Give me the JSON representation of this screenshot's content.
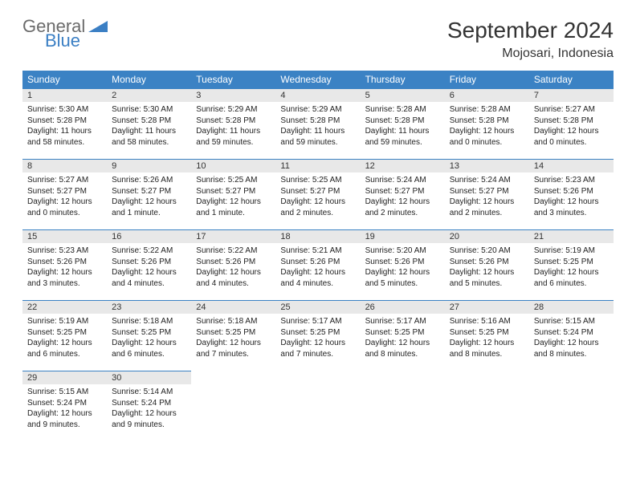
{
  "logo": {
    "line1": "General",
    "line2": "Blue"
  },
  "title": "September 2024",
  "location": "Mojosari, Indonesia",
  "day_headers": [
    "Sunday",
    "Monday",
    "Tuesday",
    "Wednesday",
    "Thursday",
    "Friday",
    "Saturday"
  ],
  "header_bg": "#3b82c4",
  "header_fg": "#ffffff",
  "daynum_bg": "#e8e8e8",
  "border_color": "#3b82c4",
  "weeks": [
    [
      {
        "n": "1",
        "sr": "Sunrise: 5:30 AM",
        "ss": "Sunset: 5:28 PM",
        "dl1": "Daylight: 11 hours",
        "dl2": "and 58 minutes."
      },
      {
        "n": "2",
        "sr": "Sunrise: 5:30 AM",
        "ss": "Sunset: 5:28 PM",
        "dl1": "Daylight: 11 hours",
        "dl2": "and 58 minutes."
      },
      {
        "n": "3",
        "sr": "Sunrise: 5:29 AM",
        "ss": "Sunset: 5:28 PM",
        "dl1": "Daylight: 11 hours",
        "dl2": "and 59 minutes."
      },
      {
        "n": "4",
        "sr": "Sunrise: 5:29 AM",
        "ss": "Sunset: 5:28 PM",
        "dl1": "Daylight: 11 hours",
        "dl2": "and 59 minutes."
      },
      {
        "n": "5",
        "sr": "Sunrise: 5:28 AM",
        "ss": "Sunset: 5:28 PM",
        "dl1": "Daylight: 11 hours",
        "dl2": "and 59 minutes."
      },
      {
        "n": "6",
        "sr": "Sunrise: 5:28 AM",
        "ss": "Sunset: 5:28 PM",
        "dl1": "Daylight: 12 hours",
        "dl2": "and 0 minutes."
      },
      {
        "n": "7",
        "sr": "Sunrise: 5:27 AM",
        "ss": "Sunset: 5:28 PM",
        "dl1": "Daylight: 12 hours",
        "dl2": "and 0 minutes."
      }
    ],
    [
      {
        "n": "8",
        "sr": "Sunrise: 5:27 AM",
        "ss": "Sunset: 5:27 PM",
        "dl1": "Daylight: 12 hours",
        "dl2": "and 0 minutes."
      },
      {
        "n": "9",
        "sr": "Sunrise: 5:26 AM",
        "ss": "Sunset: 5:27 PM",
        "dl1": "Daylight: 12 hours",
        "dl2": "and 1 minute."
      },
      {
        "n": "10",
        "sr": "Sunrise: 5:25 AM",
        "ss": "Sunset: 5:27 PM",
        "dl1": "Daylight: 12 hours",
        "dl2": "and 1 minute."
      },
      {
        "n": "11",
        "sr": "Sunrise: 5:25 AM",
        "ss": "Sunset: 5:27 PM",
        "dl1": "Daylight: 12 hours",
        "dl2": "and 2 minutes."
      },
      {
        "n": "12",
        "sr": "Sunrise: 5:24 AM",
        "ss": "Sunset: 5:27 PM",
        "dl1": "Daylight: 12 hours",
        "dl2": "and 2 minutes."
      },
      {
        "n": "13",
        "sr": "Sunrise: 5:24 AM",
        "ss": "Sunset: 5:27 PM",
        "dl1": "Daylight: 12 hours",
        "dl2": "and 2 minutes."
      },
      {
        "n": "14",
        "sr": "Sunrise: 5:23 AM",
        "ss": "Sunset: 5:26 PM",
        "dl1": "Daylight: 12 hours",
        "dl2": "and 3 minutes."
      }
    ],
    [
      {
        "n": "15",
        "sr": "Sunrise: 5:23 AM",
        "ss": "Sunset: 5:26 PM",
        "dl1": "Daylight: 12 hours",
        "dl2": "and 3 minutes."
      },
      {
        "n": "16",
        "sr": "Sunrise: 5:22 AM",
        "ss": "Sunset: 5:26 PM",
        "dl1": "Daylight: 12 hours",
        "dl2": "and 4 minutes."
      },
      {
        "n": "17",
        "sr": "Sunrise: 5:22 AM",
        "ss": "Sunset: 5:26 PM",
        "dl1": "Daylight: 12 hours",
        "dl2": "and 4 minutes."
      },
      {
        "n": "18",
        "sr": "Sunrise: 5:21 AM",
        "ss": "Sunset: 5:26 PM",
        "dl1": "Daylight: 12 hours",
        "dl2": "and 4 minutes."
      },
      {
        "n": "19",
        "sr": "Sunrise: 5:20 AM",
        "ss": "Sunset: 5:26 PM",
        "dl1": "Daylight: 12 hours",
        "dl2": "and 5 minutes."
      },
      {
        "n": "20",
        "sr": "Sunrise: 5:20 AM",
        "ss": "Sunset: 5:26 PM",
        "dl1": "Daylight: 12 hours",
        "dl2": "and 5 minutes."
      },
      {
        "n": "21",
        "sr": "Sunrise: 5:19 AM",
        "ss": "Sunset: 5:25 PM",
        "dl1": "Daylight: 12 hours",
        "dl2": "and 6 minutes."
      }
    ],
    [
      {
        "n": "22",
        "sr": "Sunrise: 5:19 AM",
        "ss": "Sunset: 5:25 PM",
        "dl1": "Daylight: 12 hours",
        "dl2": "and 6 minutes."
      },
      {
        "n": "23",
        "sr": "Sunrise: 5:18 AM",
        "ss": "Sunset: 5:25 PM",
        "dl1": "Daylight: 12 hours",
        "dl2": "and 6 minutes."
      },
      {
        "n": "24",
        "sr": "Sunrise: 5:18 AM",
        "ss": "Sunset: 5:25 PM",
        "dl1": "Daylight: 12 hours",
        "dl2": "and 7 minutes."
      },
      {
        "n": "25",
        "sr": "Sunrise: 5:17 AM",
        "ss": "Sunset: 5:25 PM",
        "dl1": "Daylight: 12 hours",
        "dl2": "and 7 minutes."
      },
      {
        "n": "26",
        "sr": "Sunrise: 5:17 AM",
        "ss": "Sunset: 5:25 PM",
        "dl1": "Daylight: 12 hours",
        "dl2": "and 8 minutes."
      },
      {
        "n": "27",
        "sr": "Sunrise: 5:16 AM",
        "ss": "Sunset: 5:25 PM",
        "dl1": "Daylight: 12 hours",
        "dl2": "and 8 minutes."
      },
      {
        "n": "28",
        "sr": "Sunrise: 5:15 AM",
        "ss": "Sunset: 5:24 PM",
        "dl1": "Daylight: 12 hours",
        "dl2": "and 8 minutes."
      }
    ],
    [
      {
        "n": "29",
        "sr": "Sunrise: 5:15 AM",
        "ss": "Sunset: 5:24 PM",
        "dl1": "Daylight: 12 hours",
        "dl2": "and 9 minutes."
      },
      {
        "n": "30",
        "sr": "Sunrise: 5:14 AM",
        "ss": "Sunset: 5:24 PM",
        "dl1": "Daylight: 12 hours",
        "dl2": "and 9 minutes."
      },
      null,
      null,
      null,
      null,
      null
    ]
  ]
}
